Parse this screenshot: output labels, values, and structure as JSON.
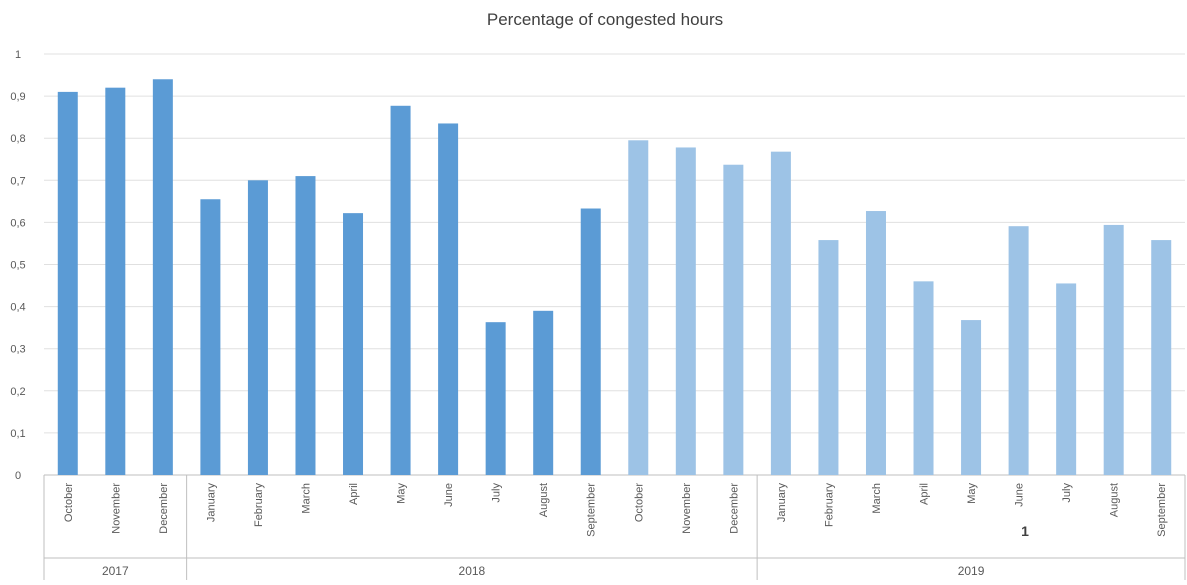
{
  "chart_data": {
    "type": "bar",
    "title": "Percentage of congested hours",
    "xlabel": "",
    "ylabel": "",
    "ylim": [
      0,
      1
    ],
    "yticks": [
      "0",
      "0,1",
      "0,2",
      "0,3",
      "0,4",
      "0,5",
      "0,6",
      "0,7",
      "0,8",
      "0,9",
      "1"
    ],
    "grid": true,
    "legend": "none",
    "categories": [
      "October",
      "November",
      "December",
      "January",
      "February",
      "March",
      "April",
      "May",
      "June",
      "July",
      "August",
      "September",
      "October",
      "November",
      "December",
      "January",
      "February",
      "March",
      "April",
      "May",
      "June",
      "July",
      "August",
      "September"
    ],
    "values": [
      0.91,
      0.92,
      0.94,
      0.655,
      0.7,
      0.71,
      0.622,
      0.877,
      0.835,
      0.363,
      0.39,
      0.633,
      0.795,
      0.778,
      0.737,
      0.768,
      0.558,
      0.627,
      0.46,
      0.368,
      0.591,
      0.455,
      0.594,
      0.558
    ],
    "groups": [
      {
        "label": "2017",
        "count": 3
      },
      {
        "label": "2018",
        "count": 12
      },
      {
        "label": "2019",
        "count": 9
      }
    ],
    "colors": {
      "dark_bar": "#5b9bd5",
      "light_bar": "#9dc3e6",
      "grid": "#e0e0e0",
      "axis": "#bfbfbf",
      "text": "#595959"
    },
    "dark_bar_count": 12,
    "annotations": [
      "1"
    ]
  }
}
